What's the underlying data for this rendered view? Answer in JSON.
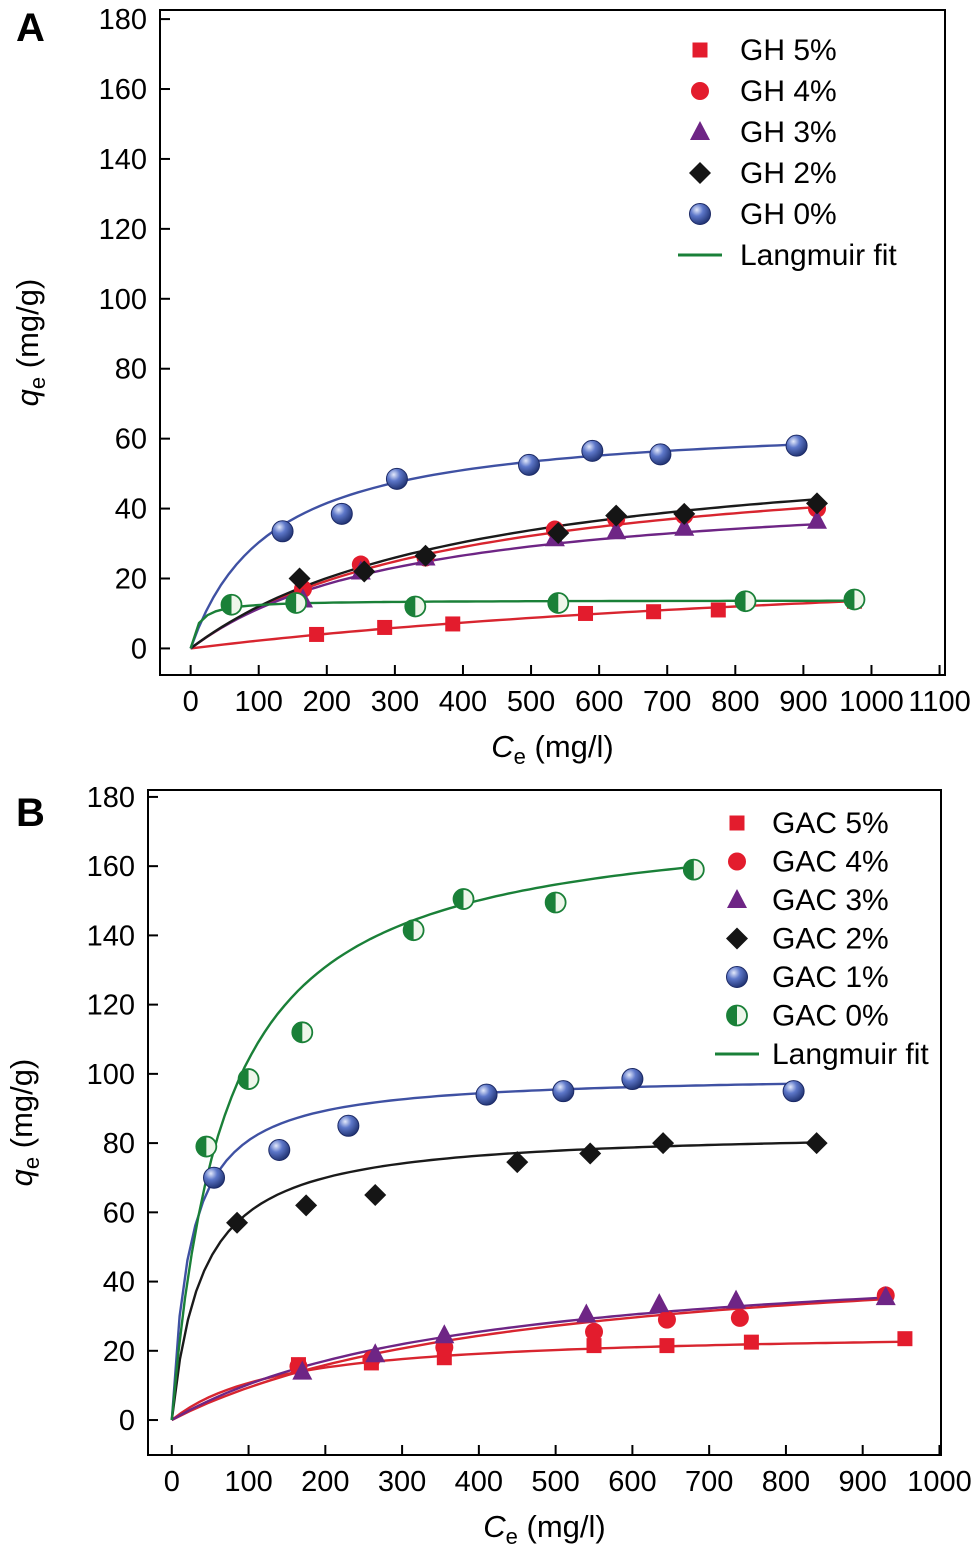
{
  "panels": [
    {
      "letter": "A"
    },
    {
      "letter": "B"
    }
  ],
  "chart_data": [
    {
      "id": "panel-A",
      "type": "scatter",
      "title": "",
      "xlabel": {
        "var": "C",
        "sub": "e",
        "unit": "(mg/l)"
      },
      "ylabel": {
        "var": "q",
        "sub": "e",
        "unit": "(mg/g)"
      },
      "xlim": [
        0,
        1100
      ],
      "ylim": [
        0,
        180
      ],
      "xticks": [
        0,
        100,
        200,
        300,
        400,
        500,
        600,
        700,
        800,
        900,
        1000,
        1100
      ],
      "yticks": [
        0,
        20,
        40,
        60,
        80,
        100,
        120,
        140,
        160,
        180
      ],
      "grid": false,
      "legend_position": "top-right-inside",
      "legend": [
        {
          "label": "GH 5%",
          "marker": "square",
          "color": "#e31c2d"
        },
        {
          "label": "GH 4%",
          "marker": "circle",
          "color": "#e31c2d"
        },
        {
          "label": "GH 3%",
          "marker": "triangle",
          "color": "#6e2585"
        },
        {
          "label": "GH 2%",
          "marker": "diamond",
          "color": "#151515"
        },
        {
          "label": "GH 0%",
          "marker": "sphere",
          "color": "#3a53a4"
        },
        {
          "label": "Langmuir fit",
          "marker": "line",
          "color": "#1a8038"
        }
      ],
      "series": [
        {
          "name": "GH 5%",
          "marker": "square",
          "color": "#e31c2d",
          "line_color": "#d8252f",
          "langmuir_fit": {
            "qm": 32,
            "b": 0.00075
          },
          "fit_xmax": 985,
          "points": [
            [
              185,
              4
            ],
            [
              285,
              6
            ],
            [
              385,
              7
            ],
            [
              580,
              10
            ],
            [
              680,
              10.5
            ],
            [
              775,
              11
            ],
            [
              975,
              13.5
            ]
          ]
        },
        {
          "name": "GH 4%",
          "marker": "circle",
          "color": "#e31c2d",
          "line_color": "#d8252f",
          "langmuir_fit": {
            "qm": 58,
            "b": 0.0025
          },
          "fit_xmax": 925,
          "points": [
            [
              165,
              17
            ],
            [
              250,
              24
            ],
            [
              345,
              26
            ],
            [
              535,
              34
            ],
            [
              625,
              37
            ],
            [
              725,
              38
            ],
            [
              920,
              40
            ]
          ]
        },
        {
          "name": "GH 3%",
          "marker": "triangle",
          "color": "#6e2585",
          "line_color": "#6e2585",
          "langmuir_fit": {
            "qm": 48,
            "b": 0.0031
          },
          "fit_xmax": 925,
          "points": [
            [
              165,
              14
            ],
            [
              250,
              22
            ],
            [
              345,
              26
            ],
            [
              535,
              31.5
            ],
            [
              625,
              33.5
            ],
            [
              725,
              34.5
            ],
            [
              920,
              36.5
            ]
          ]
        },
        {
          "name": "GH 2%",
          "marker": "diamond",
          "color": "#151515",
          "line_color": "#1a1a1a",
          "langmuir_fit": {
            "qm": 62,
            "b": 0.0024
          },
          "fit_xmax": 925,
          "points": [
            [
              160,
              20
            ],
            [
              255,
              22
            ],
            [
              345,
              26.5
            ],
            [
              540,
              33
            ],
            [
              625,
              38
            ],
            [
              725,
              38.5
            ],
            [
              920,
              41.5
            ]
          ]
        },
        {
          "name": "GH 0%",
          "marker": "sphere",
          "color": "#3a53a4",
          "line_color": "#3f51a3",
          "langmuir_fit": {
            "qm": 66,
            "b": 0.0085
          },
          "fit_xmax": 895,
          "points": [
            [
              135,
              33.5
            ],
            [
              222,
              38.5
            ],
            [
              303,
              48.5
            ],
            [
              497,
              52.5
            ],
            [
              590,
              56.5
            ],
            [
              690,
              55.5
            ],
            [
              890,
              58
            ]
          ]
        },
        {
          "name": "",
          "marker": "half-circle",
          "color": "#1a8038",
          "line_color": "#1a8038",
          "langmuir_fit": {
            "qm": 13.8,
            "b": 0.09
          },
          "fit_xmax": 985,
          "points": [
            [
              60,
              12.5
            ],
            [
              155,
              13
            ],
            [
              330,
              12
            ],
            [
              540,
              13
            ],
            [
              815,
              13.5
            ],
            [
              975,
              14
            ]
          ]
        }
      ]
    },
    {
      "id": "panel-B",
      "type": "scatter",
      "title": "",
      "xlabel": {
        "var": "C",
        "sub": "e",
        "unit": "(mg/l)"
      },
      "ylabel": {
        "var": "q",
        "sub": "e",
        "unit": "(mg/g)"
      },
      "xlim": [
        0,
        1000
      ],
      "ylim": [
        0,
        180
      ],
      "xticks": [
        0,
        100,
        200,
        300,
        400,
        500,
        600,
        700,
        800,
        900,
        1000
      ],
      "yticks": [
        0,
        20,
        40,
        60,
        80,
        100,
        120,
        140,
        160,
        180
      ],
      "grid": false,
      "legend_position": "top-right-inside",
      "legend": [
        {
          "label": "GAC 5%",
          "marker": "square",
          "color": "#e31c2d"
        },
        {
          "label": "GAC 4%",
          "marker": "circle",
          "color": "#e31c2d"
        },
        {
          "label": "GAC 3%",
          "marker": "triangle",
          "color": "#6e2585"
        },
        {
          "label": "GAC 2%",
          "marker": "diamond",
          "color": "#151515"
        },
        {
          "label": "GAC 1%",
          "marker": "sphere",
          "color": "#3a53a4"
        },
        {
          "label": "GAC 0%",
          "marker": "half-circle",
          "color": "#1a8038"
        },
        {
          "label": "Langmuir fit",
          "marker": "line",
          "color": "#1a8038"
        }
      ],
      "series": [
        {
          "name": "GAC 5%",
          "marker": "square",
          "color": "#e31c2d",
          "line_color": "#d8252f",
          "langmuir_fit": {
            "qm": 26,
            "b": 0.007
          },
          "fit_xmax": 960,
          "points": [
            [
              165,
              16
            ],
            [
              260,
              16.5
            ],
            [
              355,
              18
            ],
            [
              550,
              21.5
            ],
            [
              645,
              21.5
            ],
            [
              755,
              22.5
            ],
            [
              955,
              23.5
            ]
          ]
        },
        {
          "name": "GAC 4%",
          "marker": "circle",
          "color": "#e31c2d",
          "line_color": "#d8252f",
          "langmuir_fit": {
            "qm": 52,
            "b": 0.0022
          },
          "fit_xmax": 935,
          "points": [
            [
              165,
              15.5
            ],
            [
              260,
              17.5
            ],
            [
              355,
              21
            ],
            [
              550,
              25.5
            ],
            [
              645,
              29
            ],
            [
              740,
              29.5
            ],
            [
              930,
              36
            ]
          ]
        },
        {
          "name": "GAC 3%",
          "marker": "triangle",
          "color": "#6e2585",
          "line_color": "#6e2585",
          "langmuir_fit": {
            "qm": 50,
            "b": 0.0026
          },
          "fit_xmax": 935,
          "points": [
            [
              170,
              14
            ],
            [
              265,
              19
            ],
            [
              355,
              24.5
            ],
            [
              540,
              30.5
            ],
            [
              635,
              33.5
            ],
            [
              735,
              34.5
            ],
            [
              930,
              35.5
            ]
          ]
        },
        {
          "name": "GAC 2%",
          "marker": "diamond",
          "color": "#151515",
          "line_color": "#1a1a1a",
          "langmuir_fit": {
            "qm": 84,
            "b": 0.025
          },
          "fit_xmax": 845,
          "points": [
            [
              85,
              57
            ],
            [
              175,
              62
            ],
            [
              265,
              65
            ],
            [
              450,
              74.5
            ],
            [
              545,
              77
            ],
            [
              640,
              80
            ],
            [
              840,
              80
            ]
          ]
        },
        {
          "name": "GAC 1%",
          "marker": "sphere",
          "color": "#3a53a4",
          "line_color": "#3f51a3",
          "langmuir_fit": {
            "qm": 100,
            "b": 0.042
          },
          "fit_xmax": 815,
          "points": [
            [
              55,
              70
            ],
            [
              140,
              78
            ],
            [
              230,
              85
            ],
            [
              410,
              94
            ],
            [
              510,
              95
            ],
            [
              600,
              98.5
            ],
            [
              810,
              95
            ]
          ]
        },
        {
          "name": "GAC 0%",
          "marker": "half-circle",
          "color": "#1a8038",
          "line_color": "#1a8038",
          "langmuir_fit": {
            "qm": 176,
            "b": 0.0145
          },
          "fit_xmax": 690,
          "points": [
            [
              45,
              79
            ],
            [
              100,
              98.5
            ],
            [
              170,
              112
            ],
            [
              315,
              141.5
            ],
            [
              380,
              150.5
            ],
            [
              500,
              149.5
            ],
            [
              680,
              159
            ]
          ]
        }
      ]
    }
  ]
}
